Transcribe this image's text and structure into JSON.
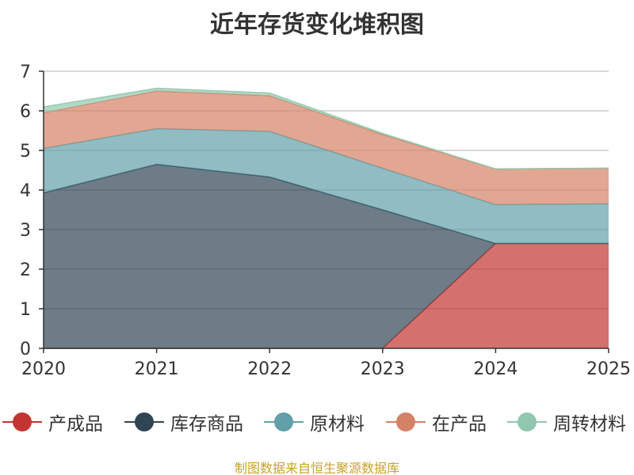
{
  "chart_data": {
    "type": "area",
    "stacked": true,
    "title": "近年存货变化堆积图",
    "categories": [
      "2020",
      "2021",
      "2022",
      "2023",
      "2024",
      "2025"
    ],
    "ylim": [
      0,
      7
    ],
    "yticks": [
      "0",
      "1",
      "2",
      "3",
      "4",
      "5",
      "6",
      "7"
    ],
    "grid": true,
    "legend_position": "bottom",
    "series": [
      {
        "name": "产成品",
        "color": "#c23531",
        "values": [
          0,
          0,
          0,
          0,
          2.65,
          2.65
        ]
      },
      {
        "name": "库存商品",
        "color": "#2f4554",
        "values": [
          3.93,
          4.65,
          4.33,
          3.5,
          0,
          0
        ]
      },
      {
        "name": "原材料",
        "color": "#61a0a8",
        "values": [
          1.12,
          0.9,
          1.15,
          1.05,
          0.98,
          1.0
        ]
      },
      {
        "name": "在产品",
        "color": "#d48265",
        "values": [
          0.9,
          0.95,
          0.9,
          0.85,
          0.9,
          0.9
        ]
      },
      {
        "name": "周转材料",
        "color": "#91c7ae",
        "values": [
          0.15,
          0.07,
          0.07,
          0.03,
          0.0,
          0.0
        ]
      }
    ]
  },
  "source_note": "制图数据来自恒生聚源数据库"
}
